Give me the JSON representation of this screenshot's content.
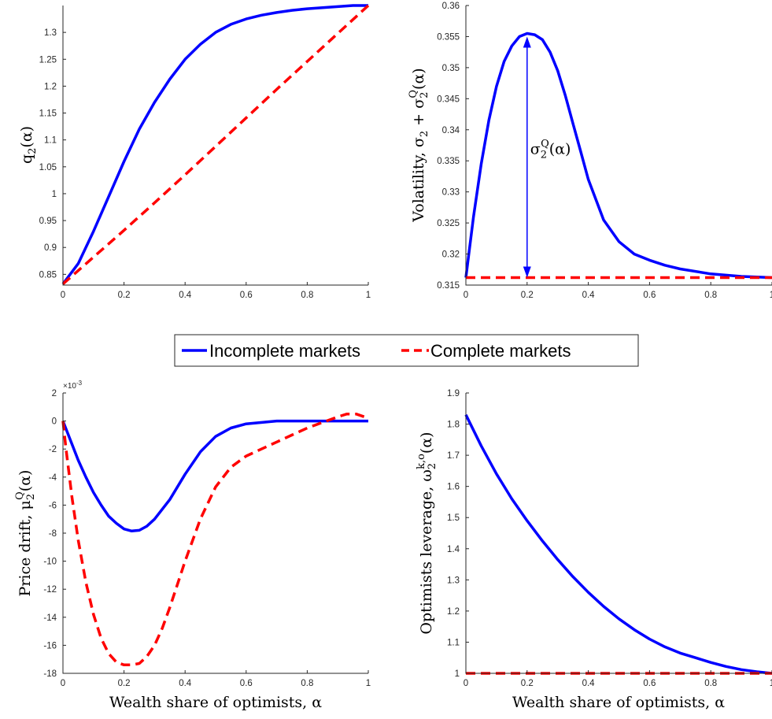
{
  "legend": {
    "items": [
      {
        "label": "Incomplete markets",
        "color": "#0000ff",
        "dash": "solid"
      },
      {
        "label": "Complete markets",
        "color": "#ff0000",
        "dash": "dashed"
      }
    ]
  },
  "chart_data": [
    {
      "type": "line",
      "ylabel": "q2(α)",
      "xlabel": "",
      "xlim": [
        0,
        1
      ],
      "ylim": [
        0.83,
        1.35
      ],
      "xticks": [
        "0",
        "0.2",
        "0.4",
        "0.6",
        "0.8",
        "1"
      ],
      "yticks": [
        "0.85",
        "0.9",
        "0.95",
        "1",
        "1.05",
        "1.1",
        "1.15",
        "1.2",
        "1.25",
        "1.3"
      ],
      "series": [
        {
          "name": "Incomplete markets",
          "color": "#0000ff",
          "dash": "solid",
          "x": [
            0,
            0.05,
            0.1,
            0.15,
            0.2,
            0.25,
            0.3,
            0.35,
            0.4,
            0.45,
            0.5,
            0.55,
            0.6,
            0.65,
            0.7,
            0.75,
            0.8,
            0.85,
            0.9,
            0.95,
            1
          ],
          "y": [
            0.832,
            0.87,
            0.93,
            0.995,
            1.06,
            1.12,
            1.17,
            1.213,
            1.25,
            1.278,
            1.3,
            1.315,
            1.325,
            1.332,
            1.337,
            1.341,
            1.344,
            1.346,
            1.348,
            1.35,
            1.35
          ]
        },
        {
          "name": "Complete markets",
          "color": "#ff0000",
          "dash": "dashed",
          "x": [
            0,
            0.1,
            0.2,
            0.3,
            0.4,
            0.5,
            0.6,
            0.7,
            0.8,
            0.9,
            1
          ],
          "y": [
            0.832,
            0.882,
            0.932,
            0.983,
            1.035,
            1.088,
            1.141,
            1.194,
            1.246,
            1.298,
            1.35
          ]
        }
      ]
    },
    {
      "type": "line",
      "ylabel": "Volatility, σ2 + σ2Q(α)",
      "xlabel": "",
      "xlim": [
        0,
        1
      ],
      "ylim": [
        0.315,
        0.36
      ],
      "xticks": [
        "0",
        "0.2",
        "0.4",
        "0.6",
        "0.8",
        "1"
      ],
      "yticks": [
        "0.315",
        "0.32",
        "0.325",
        "0.33",
        "0.335",
        "0.34",
        "0.345",
        "0.35",
        "0.355",
        "0.36"
      ],
      "annotation": {
        "label": "σ2Q(α)",
        "x": 0.2,
        "y_top": 0.355,
        "y_bottom": 0.3162
      },
      "series": [
        {
          "name": "Incomplete markets",
          "color": "#0000ff",
          "dash": "solid",
          "x": [
            0,
            0.025,
            0.05,
            0.075,
            0.1,
            0.125,
            0.15,
            0.175,
            0.2,
            0.225,
            0.25,
            0.275,
            0.3,
            0.325,
            0.35,
            0.375,
            0.4,
            0.45,
            0.5,
            0.55,
            0.6,
            0.65,
            0.7,
            0.8,
            0.9,
            1
          ],
          "y": [
            0.3162,
            0.326,
            0.3345,
            0.3415,
            0.347,
            0.351,
            0.3535,
            0.355,
            0.3555,
            0.3553,
            0.3545,
            0.3525,
            0.3495,
            0.3455,
            0.341,
            0.3365,
            0.332,
            0.3255,
            0.322,
            0.32,
            0.319,
            0.3182,
            0.3176,
            0.3168,
            0.3164,
            0.3162
          ]
        },
        {
          "name": "Complete markets",
          "color": "#ff0000",
          "dash": "dashed",
          "x": [
            0,
            1
          ],
          "y": [
            0.3162,
            0.3162
          ]
        }
      ]
    },
    {
      "type": "line",
      "ylabel": "Price drift, μ2Q(α)",
      "xlabel": "Wealth share of optimists, α",
      "xlim": [
        0,
        1
      ],
      "ylim": [
        -18,
        2
      ],
      "scale_exponent": "×10-3",
      "xticks": [
        "0",
        "0.2",
        "0.4",
        "0.6",
        "0.8",
        "1"
      ],
      "yticks": [
        "-18",
        "-16",
        "-14",
        "-12",
        "-10",
        "-8",
        "-6",
        "-4",
        "-2",
        "0",
        "2"
      ],
      "series": [
        {
          "name": "Incomplete markets",
          "color": "#0000ff",
          "dash": "solid",
          "x": [
            0,
            0.025,
            0.05,
            0.075,
            0.1,
            0.125,
            0.15,
            0.175,
            0.2,
            0.225,
            0.25,
            0.275,
            0.3,
            0.35,
            0.4,
            0.45,
            0.5,
            0.55,
            0.6,
            0.7,
            0.8,
            0.9,
            1
          ],
          "y": [
            0,
            -1.4,
            -2.8,
            -4.0,
            -5.1,
            -6.0,
            -6.8,
            -7.3,
            -7.7,
            -7.85,
            -7.8,
            -7.5,
            -7.0,
            -5.6,
            -3.8,
            -2.2,
            -1.1,
            -0.5,
            -0.2,
            0,
            0,
            0,
            0
          ]
        },
        {
          "name": "Complete markets",
          "color": "#ff0000",
          "dash": "dashed",
          "x": [
            0,
            0.01,
            0.03,
            0.05,
            0.075,
            0.1,
            0.125,
            0.15,
            0.175,
            0.2,
            0.225,
            0.25,
            0.275,
            0.3,
            0.325,
            0.35,
            0.4,
            0.45,
            0.5,
            0.55,
            0.6,
            0.65,
            0.7,
            0.75,
            0.8,
            0.85,
            0.9,
            0.93,
            0.96,
            1
          ],
          "y": [
            0,
            -2.0,
            -5.5,
            -8.5,
            -11.5,
            -13.8,
            -15.5,
            -16.6,
            -17.2,
            -17.4,
            -17.4,
            -17.3,
            -16.8,
            -16.0,
            -14.8,
            -13.3,
            -10.0,
            -7.0,
            -4.7,
            -3.3,
            -2.5,
            -2.0,
            -1.5,
            -1.0,
            -0.5,
            -0.1,
            0.3,
            0.5,
            0.5,
            0.2
          ]
        }
      ]
    },
    {
      "type": "line",
      "ylabel": "Optimists leverage, ω2k,o(α)",
      "xlabel": "Wealth share of optimists, α",
      "xlim": [
        0,
        1
      ],
      "ylim": [
        1,
        1.9
      ],
      "xticks": [
        "0",
        "0.2",
        "0.4",
        "0.6",
        "0.8",
        "1"
      ],
      "yticks": [
        "1",
        "1.1",
        "1.2",
        "1.3",
        "1.4",
        "1.5",
        "1.6",
        "1.7",
        "1.8",
        "1.9"
      ],
      "series": [
        {
          "name": "Incomplete markets",
          "color": "#0000ff",
          "dash": "solid",
          "x": [
            0,
            0.05,
            0.1,
            0.15,
            0.2,
            0.25,
            0.3,
            0.35,
            0.4,
            0.45,
            0.5,
            0.55,
            0.6,
            0.65,
            0.7,
            0.75,
            0.8,
            0.85,
            0.9,
            0.95,
            1
          ],
          "y": [
            1.83,
            1.73,
            1.64,
            1.56,
            1.49,
            1.425,
            1.365,
            1.31,
            1.26,
            1.215,
            1.175,
            1.14,
            1.11,
            1.085,
            1.065,
            1.05,
            1.035,
            1.022,
            1.012,
            1.005,
            1.0
          ]
        },
        {
          "name": "Complete markets",
          "color": "#ff0000",
          "dash": "dashed",
          "x": [
            0,
            1
          ],
          "y": [
            1.0,
            1.0
          ]
        }
      ]
    }
  ]
}
